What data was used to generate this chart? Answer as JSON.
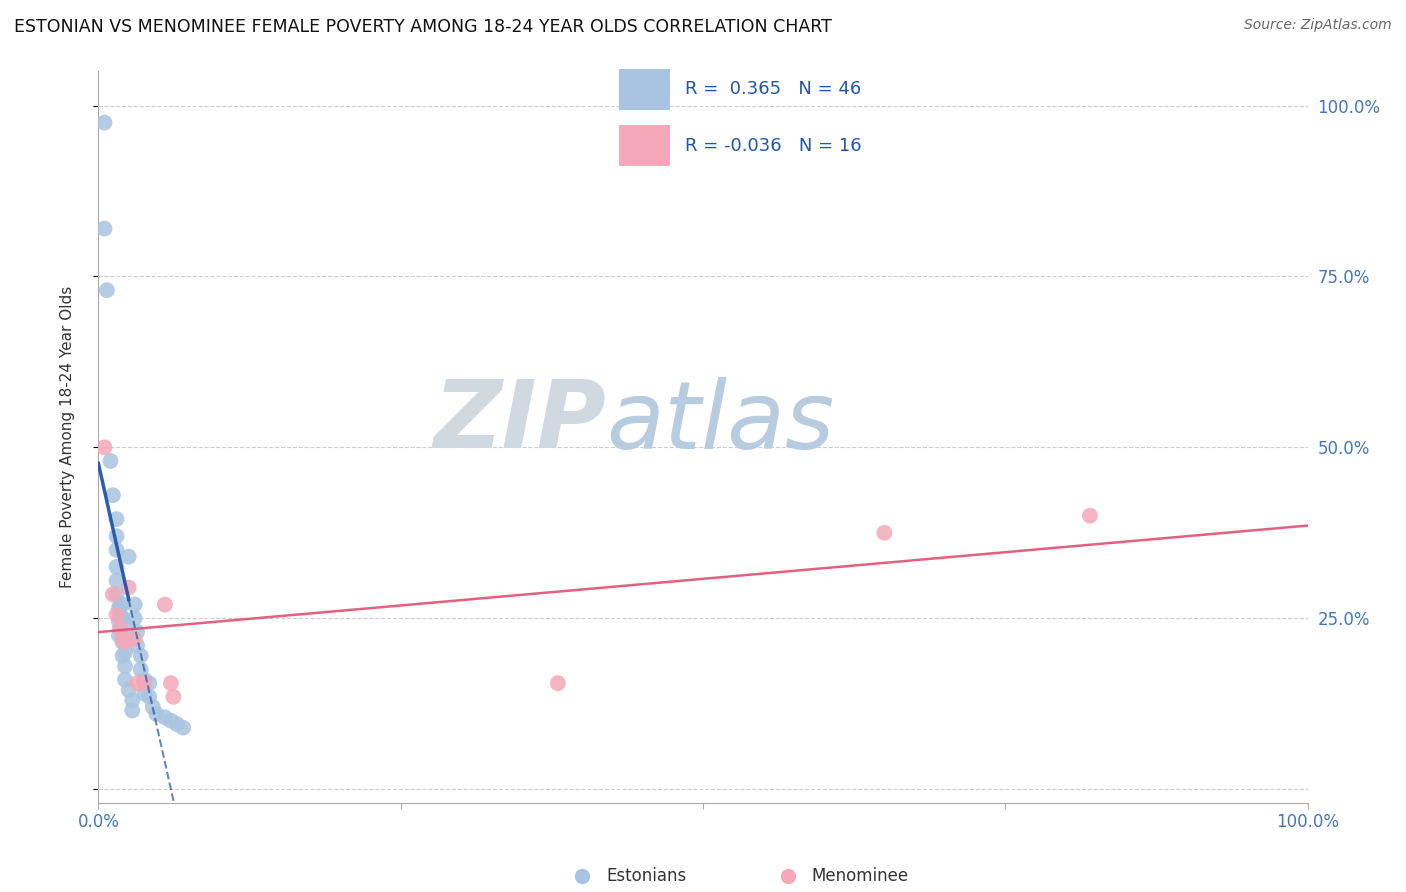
{
  "title": "ESTONIAN VS MENOMINEE FEMALE POVERTY AMONG 18-24 YEAR OLDS CORRELATION CHART",
  "source": "Source: ZipAtlas.com",
  "ylabel": "Female Poverty Among 18-24 Year Olds",
  "xlim": [
    0.0,
    1.0
  ],
  "ylim": [
    -0.02,
    1.05
  ],
  "r_estonian": 0.365,
  "n_estonian": 46,
  "r_menominee": -0.036,
  "n_menominee": 16,
  "estonian_color": "#a8c4e0",
  "menominee_color": "#f4a8b8",
  "estonian_line_color": "#2255aa",
  "menominee_line_color": "#e05070",
  "watermark_zip": "ZIP",
  "watermark_atlas": "atlas",
  "watermark_zip_color": "#d0d8e0",
  "watermark_atlas_color": "#b8cce0",
  "estonian_points": [
    [
      0.005,
      0.975
    ],
    [
      0.005,
      0.82
    ],
    [
      0.007,
      0.73
    ],
    [
      0.01,
      0.48
    ],
    [
      0.012,
      0.43
    ],
    [
      0.015,
      0.395
    ],
    [
      0.015,
      0.37
    ],
    [
      0.015,
      0.35
    ],
    [
      0.015,
      0.325
    ],
    [
      0.015,
      0.305
    ],
    [
      0.015,
      0.285
    ],
    [
      0.017,
      0.265
    ],
    [
      0.017,
      0.245
    ],
    [
      0.017,
      0.225
    ],
    [
      0.018,
      0.27
    ],
    [
      0.018,
      0.255
    ],
    [
      0.018,
      0.235
    ],
    [
      0.02,
      0.215
    ],
    [
      0.02,
      0.195
    ],
    [
      0.02,
      0.27
    ],
    [
      0.02,
      0.25
    ],
    [
      0.022,
      0.24
    ],
    [
      0.022,
      0.22
    ],
    [
      0.022,
      0.2
    ],
    [
      0.022,
      0.18
    ],
    [
      0.022,
      0.16
    ],
    [
      0.025,
      0.34
    ],
    [
      0.025,
      0.145
    ],
    [
      0.028,
      0.13
    ],
    [
      0.028,
      0.115
    ],
    [
      0.03,
      0.27
    ],
    [
      0.03,
      0.25
    ],
    [
      0.032,
      0.23
    ],
    [
      0.032,
      0.21
    ],
    [
      0.035,
      0.195
    ],
    [
      0.035,
      0.175
    ],
    [
      0.038,
      0.16
    ],
    [
      0.038,
      0.14
    ],
    [
      0.042,
      0.155
    ],
    [
      0.042,
      0.135
    ],
    [
      0.045,
      0.12
    ],
    [
      0.048,
      0.11
    ],
    [
      0.055,
      0.105
    ],
    [
      0.06,
      0.1
    ],
    [
      0.065,
      0.095
    ],
    [
      0.07,
      0.09
    ]
  ],
  "menominee_points": [
    [
      0.005,
      0.5
    ],
    [
      0.012,
      0.285
    ],
    [
      0.015,
      0.255
    ],
    [
      0.018,
      0.235
    ],
    [
      0.02,
      0.22
    ],
    [
      0.022,
      0.215
    ],
    [
      0.025,
      0.295
    ],
    [
      0.03,
      0.22
    ],
    [
      0.032,
      0.155
    ],
    [
      0.038,
      0.155
    ],
    [
      0.055,
      0.27
    ],
    [
      0.06,
      0.155
    ],
    [
      0.062,
      0.135
    ],
    [
      0.38,
      0.155
    ],
    [
      0.65,
      0.375
    ],
    [
      0.82,
      0.4
    ]
  ]
}
